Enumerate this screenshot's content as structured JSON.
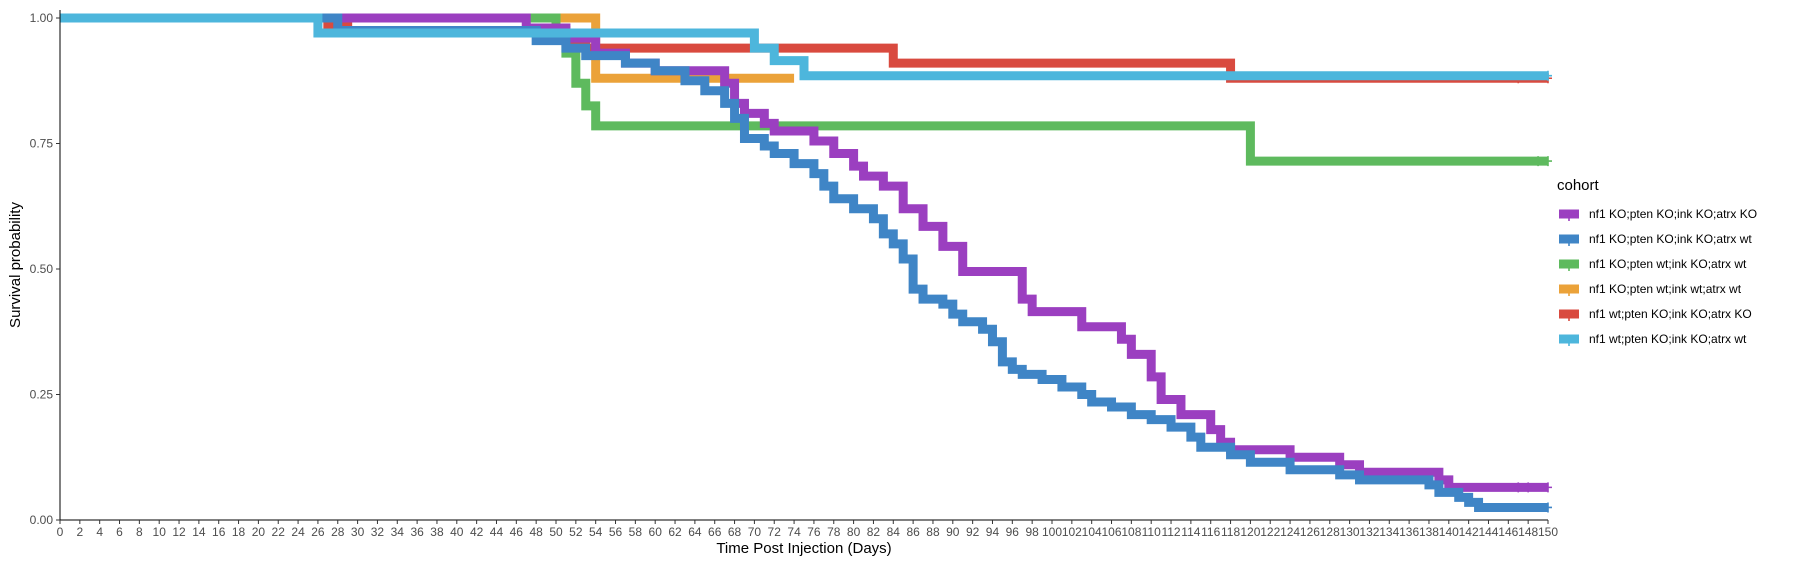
{
  "chart_data": {
    "type": "line",
    "subtype": "kaplan-meier-step",
    "title": "",
    "xlabel": "Time Post Injection (Days)",
    "ylabel": "Survival probability",
    "xlim": [
      0,
      150
    ],
    "ylim": [
      0,
      1
    ],
    "x_ticks": [
      0,
      2,
      4,
      6,
      8,
      10,
      12,
      14,
      16,
      18,
      20,
      22,
      24,
      26,
      28,
      30,
      32,
      34,
      36,
      38,
      40,
      42,
      44,
      46,
      48,
      50,
      52,
      54,
      56,
      58,
      60,
      62,
      64,
      66,
      68,
      70,
      72,
      74,
      76,
      78,
      80,
      82,
      84,
      86,
      88,
      90,
      92,
      94,
      96,
      98,
      100,
      102,
      104,
      106,
      108,
      110,
      112,
      114,
      116,
      118,
      120,
      122,
      124,
      126,
      128,
      130,
      132,
      134,
      136,
      138,
      140,
      142,
      144,
      146,
      148,
      150
    ],
    "y_ticks": [
      "0.00",
      "0.25",
      "0.50",
      "0.75",
      "1.00"
    ],
    "grid": false,
    "legend_title": "cohort",
    "legend_position": "right",
    "series": [
      {
        "name": "nf1 KO;pten KO;ink KO;atrx KO",
        "color": "#9B3FC0",
        "steps": [
          [
            0,
            1.0
          ],
          [
            47,
            0.98
          ],
          [
            51,
            0.96
          ],
          [
            54,
            0.93
          ],
          [
            57,
            0.91
          ],
          [
            60,
            0.895
          ],
          [
            67,
            0.87
          ],
          [
            68,
            0.83
          ],
          [
            69,
            0.81
          ],
          [
            71,
            0.79
          ],
          [
            72,
            0.775
          ],
          [
            76,
            0.755
          ],
          [
            78,
            0.73
          ],
          [
            80,
            0.705
          ],
          [
            81,
            0.685
          ],
          [
            83,
            0.665
          ],
          [
            85,
            0.62
          ],
          [
            87,
            0.585
          ],
          [
            89,
            0.545
          ],
          [
            91,
            0.495
          ],
          [
            97,
            0.44
          ],
          [
            98,
            0.415
          ],
          [
            103,
            0.385
          ],
          [
            107,
            0.36
          ],
          [
            108,
            0.33
          ],
          [
            110,
            0.285
          ],
          [
            111,
            0.24
          ],
          [
            113,
            0.21
          ],
          [
            116,
            0.18
          ],
          [
            117,
            0.155
          ],
          [
            118,
            0.14
          ],
          [
            124,
            0.125
          ],
          [
            129,
            0.11
          ],
          [
            131,
            0.095
          ],
          [
            139,
            0.08
          ],
          [
            140,
            0.065
          ]
        ],
        "censored": [
          [
            147,
            0.065
          ],
          [
            148,
            0.065
          ],
          [
            150,
            0.065
          ]
        ]
      },
      {
        "name": "nf1 KO;pten KO;ink KO;atrx wt",
        "color": "#3F85C6",
        "steps": [
          [
            0,
            1.0
          ],
          [
            28,
            0.975
          ],
          [
            48,
            0.955
          ],
          [
            51,
            0.94
          ],
          [
            53,
            0.925
          ],
          [
            57,
            0.91
          ],
          [
            60,
            0.895
          ],
          [
            63,
            0.875
          ],
          [
            65,
            0.855
          ],
          [
            67,
            0.83
          ],
          [
            68,
            0.8
          ],
          [
            69,
            0.76
          ],
          [
            71,
            0.745
          ],
          [
            72,
            0.73
          ],
          [
            74,
            0.71
          ],
          [
            76,
            0.69
          ],
          [
            77,
            0.665
          ],
          [
            78,
            0.64
          ],
          [
            80,
            0.62
          ],
          [
            82,
            0.6
          ],
          [
            83,
            0.57
          ],
          [
            84,
            0.55
          ],
          [
            85,
            0.52
          ],
          [
            86,
            0.46
          ],
          [
            87,
            0.44
          ],
          [
            89,
            0.43
          ],
          [
            90,
            0.41
          ],
          [
            91,
            0.395
          ],
          [
            93,
            0.38
          ],
          [
            94,
            0.355
          ],
          [
            95,
            0.315
          ],
          [
            96,
            0.3
          ],
          [
            97,
            0.29
          ],
          [
            99,
            0.28
          ],
          [
            101,
            0.265
          ],
          [
            103,
            0.25
          ],
          [
            104,
            0.235
          ],
          [
            106,
            0.225
          ],
          [
            108,
            0.21
          ],
          [
            110,
            0.2
          ],
          [
            112,
            0.185
          ],
          [
            114,
            0.165
          ],
          [
            115,
            0.145
          ],
          [
            118,
            0.13
          ],
          [
            120,
            0.115
          ],
          [
            124,
            0.1
          ],
          [
            129,
            0.09
          ],
          [
            131,
            0.08
          ],
          [
            138,
            0.07
          ],
          [
            139,
            0.055
          ],
          [
            141,
            0.045
          ],
          [
            142,
            0.035
          ],
          [
            143,
            0.025
          ]
        ],
        "censored": [
          [
            150,
            0.025
          ]
        ]
      },
      {
        "name": "nf1 KO;pten wt;ink KO;atrx wt",
        "color": "#5EBA5E",
        "steps": [
          [
            0,
            1.0
          ],
          [
            50,
            0.975
          ],
          [
            51,
            0.93
          ],
          [
            52,
            0.87
          ],
          [
            53,
            0.825
          ],
          [
            54,
            0.785
          ],
          [
            120,
            0.715
          ]
        ],
        "censored": [
          [
            149,
            0.715
          ],
          [
            150,
            0.715
          ]
        ]
      },
      {
        "name": "nf1 KO;pten wt;ink wt;atrx wt",
        "color": "#EBA239",
        "steps": [
          [
            0,
            1.0
          ],
          [
            54,
            0.88
          ],
          [
            74,
            0.88
          ]
        ],
        "censored": []
      },
      {
        "name": "nf1 wt;pten KO;ink KO;atrx KO",
        "color": "#D94A3F",
        "steps": [
          [
            0,
            1.0
          ],
          [
            27,
            0.985
          ],
          [
            29,
            0.97
          ],
          [
            50,
            0.97
          ],
          [
            51,
            0.955
          ],
          [
            53,
            0.94
          ],
          [
            84,
            0.91
          ],
          [
            118,
            0.88
          ]
        ],
        "censored": [
          [
            147,
            0.88
          ],
          [
            150,
            0.88
          ]
        ]
      },
      {
        "name": "nf1 wt;pten KO;ink KO;atrx wt",
        "color": "#4DB6DC",
        "steps": [
          [
            0,
            1.0
          ],
          [
            26,
            0.97
          ],
          [
            70,
            0.94
          ],
          [
            72,
            0.915
          ],
          [
            75,
            0.885
          ]
        ],
        "censored": [
          [
            150,
            0.885
          ]
        ]
      }
    ],
    "draw_order": [
      3,
      4,
      2,
      0,
      1,
      5
    ]
  }
}
